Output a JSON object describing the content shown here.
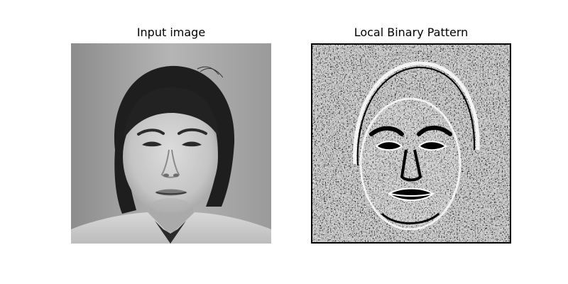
{
  "figure": {
    "panels": [
      {
        "title": "Input image"
      },
      {
        "title": "Local Binary Pattern"
      }
    ]
  }
}
